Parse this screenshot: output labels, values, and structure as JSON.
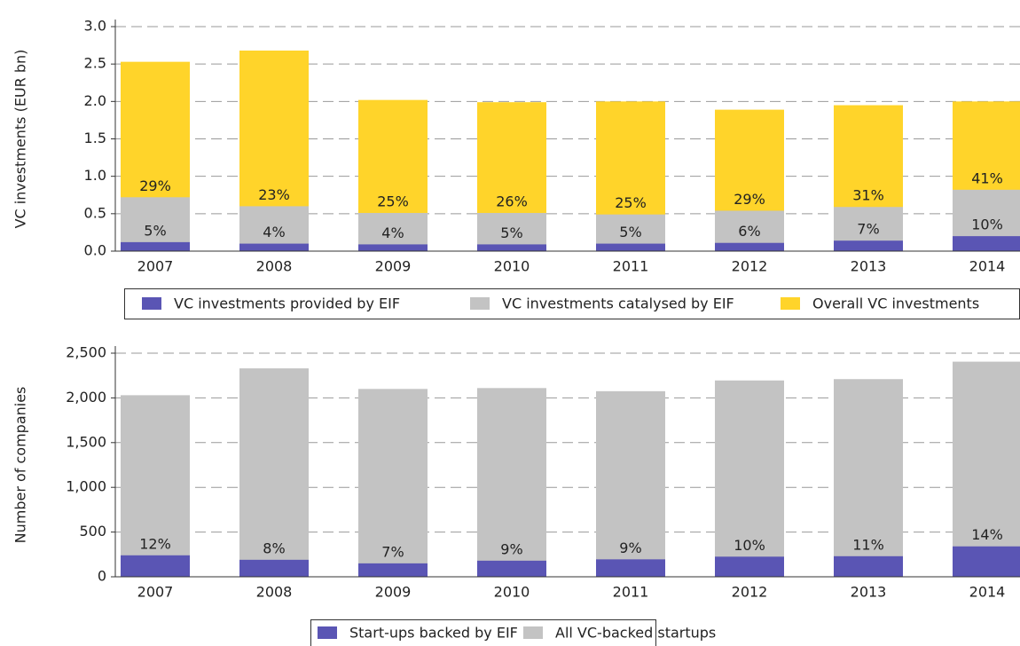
{
  "chart_data": [
    {
      "type": "bar",
      "barmode": "overlay",
      "ylabel": "VC investments (EUR bn)",
      "categories": [
        "2007",
        "2008",
        "2009",
        "2010",
        "2011",
        "2012",
        "2013",
        "2014"
      ],
      "series": [
        {
          "name": "VC investments provided by EIF",
          "color": "#5a55b4",
          "values": [
            0.12,
            0.1,
            0.09,
            0.09,
            0.1,
            0.11,
            0.14,
            0.2
          ],
          "share_labels": [
            "5%",
            "4%",
            "4%",
            "5%",
            "5%",
            "6%",
            "7%",
            "10%"
          ]
        },
        {
          "name": "VC investments catalysed by EIF",
          "color": "#c3c3c3",
          "values": [
            0.72,
            0.6,
            0.51,
            0.51,
            0.49,
            0.54,
            0.59,
            0.82
          ],
          "share_labels": [
            "29%",
            "23%",
            "25%",
            "26%",
            "25%",
            "29%",
            "31%",
            "41%"
          ]
        },
        {
          "name": "Overall VC investments",
          "color": "#ffd42a",
          "values": [
            2.53,
            2.68,
            2.02,
            1.99,
            2.0,
            1.89,
            1.95,
            2.0
          ]
        }
      ],
      "ylim": [
        0,
        3.0
      ],
      "yticks": [
        {
          "value": 0,
          "label": "0.0"
        },
        {
          "value": 0.5,
          "label": "0.5"
        },
        {
          "value": 1,
          "label": "1.0"
        },
        {
          "value": 1.5,
          "label": "1.5"
        },
        {
          "value": 2,
          "label": "2.0"
        },
        {
          "value": 2.5,
          "label": "2.5"
        },
        {
          "value": 3,
          "label": "3.0"
        }
      ],
      "grid": true
    },
    {
      "type": "bar",
      "barmode": "overlay",
      "ylabel": "Number of companies",
      "categories": [
        "2007",
        "2008",
        "2009",
        "2010",
        "2011",
        "2012",
        "2013",
        "2014"
      ],
      "series": [
        {
          "name": "Start-ups backed by EIF",
          "color": "#5a55b4",
          "values": [
            240,
            190,
            150,
            180,
            195,
            225,
            230,
            340
          ],
          "share_labels": [
            "12%",
            "8%",
            "7%",
            "9%",
            "9%",
            "10%",
            "11%",
            "14%"
          ]
        },
        {
          "name": "All VC-backed startups",
          "color": "#c3c3c3",
          "values": [
            2030,
            2330,
            2100,
            2110,
            2075,
            2195,
            2210,
            2405
          ]
        }
      ],
      "ylim": [
        0,
        2500
      ],
      "yticks": [
        0,
        500,
        {
          "value": 1000,
          "label": "1,000"
        },
        {
          "value": 1500,
          "label": "1,500"
        },
        {
          "value": 2000,
          "label": "2,000"
        },
        {
          "value": 2500,
          "label": "2,500"
        }
      ],
      "grid": true
    }
  ]
}
